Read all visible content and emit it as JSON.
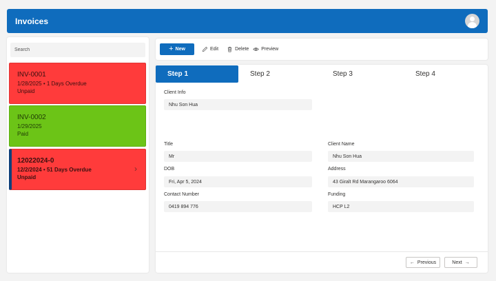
{
  "header": {
    "title": "Invoices",
    "avatar_icon": "user-avatar-icon"
  },
  "sidebar": {
    "search_placeholder": "Search",
    "invoices": [
      {
        "id": "INV-0001",
        "details": "1/28/2025 • 1 Days Overdue",
        "status": "Unpaid",
        "color": "#ff3b3b"
      },
      {
        "id": "INV-0002",
        "details": "1/29/2025",
        "status": "Paid",
        "color": "#6cc417"
      },
      {
        "id": "12022024-0",
        "details": "12/2/2024 • 51 Days Overdue",
        "status": "Unpaid",
        "color": "#ff3b3b",
        "selected": true
      }
    ]
  },
  "toolbar": {
    "new_label": "New",
    "edit_label": "Edit",
    "delete_label": "Delete",
    "preview_label": "Preview"
  },
  "steps": [
    "Step 1",
    "Step 2",
    "Step 3",
    "Step 4"
  ],
  "form": {
    "client_info": {
      "label": "Client Info",
      "value": "Nhu Son Hua"
    },
    "title": {
      "label": "Title",
      "value": "Mr"
    },
    "client_name": {
      "label": "Client Name",
      "value": "Nhu Son Hua"
    },
    "dob": {
      "label": "DOB",
      "value": "Fri, Apr 5, 2024"
    },
    "address": {
      "label": "Address",
      "value": "43 Giralt Rd Marangaroo 6064"
    },
    "contact_number": {
      "label": "Contact Number",
      "value": "0419 894 776"
    },
    "funding": {
      "label": "Funding",
      "value": "HCP L2"
    }
  },
  "footer": {
    "previous_label": "Previous",
    "next_label": "Next"
  },
  "colors": {
    "accent": "#0f6cbd",
    "overdue": "#ff3b3b",
    "paid": "#6cc417"
  }
}
